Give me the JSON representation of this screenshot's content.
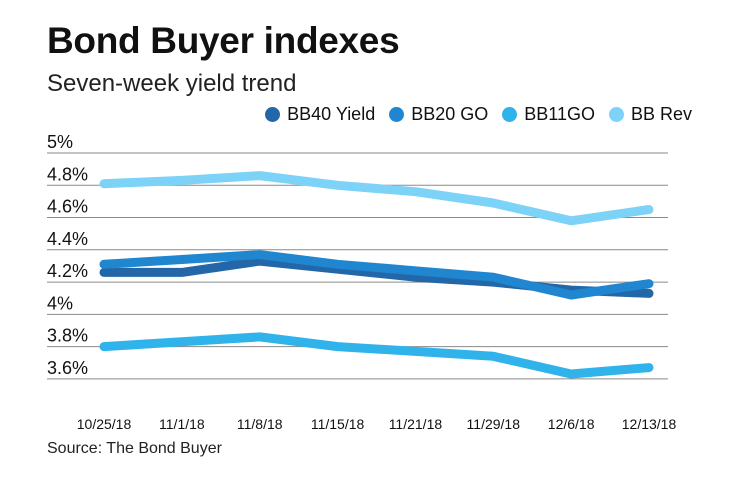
{
  "chart_data": {
    "type": "line",
    "title": "Bond Buyer indexes",
    "subtitle": "Seven-week yield trend",
    "xlabel": "",
    "ylabel": "",
    "categories": [
      "10/25/18",
      "11/1/18",
      "11/8/18",
      "11/15/18",
      "11/21/18",
      "11/29/18",
      "12/6/18",
      "12/13/18"
    ],
    "ylim": [
      3.5,
      5.0
    ],
    "yticks": [
      3.6,
      3.8,
      4.0,
      4.2,
      4.4,
      4.6,
      4.8,
      5.0
    ],
    "ytick_labels": [
      "3.6%",
      "3.8%",
      "4%",
      "4.2%",
      "4.4%",
      "4.6%",
      "4.8%",
      "5%"
    ],
    "grid": true,
    "legend_position": "top-right",
    "series": [
      {
        "name": "BB40 Yield",
        "color": "#2367a8",
        "values": [
          4.26,
          4.26,
          4.33,
          4.28,
          4.23,
          4.2,
          4.15,
          4.13
        ]
      },
      {
        "name": "BB20 GO",
        "color": "#1f86cf",
        "values": [
          4.31,
          4.34,
          4.37,
          4.31,
          4.27,
          4.23,
          4.12,
          4.19
        ]
      },
      {
        "name": "BB11GO",
        "color": "#2fb3ea",
        "values": [
          3.8,
          3.83,
          3.86,
          3.8,
          3.77,
          3.74,
          3.63,
          3.67
        ]
      },
      {
        "name": "BB Rev",
        "color": "#7dd3f7",
        "values": [
          4.81,
          4.83,
          4.86,
          4.8,
          4.76,
          4.69,
          4.58,
          4.65
        ]
      }
    ]
  },
  "source": "Source: The Bond Buyer"
}
